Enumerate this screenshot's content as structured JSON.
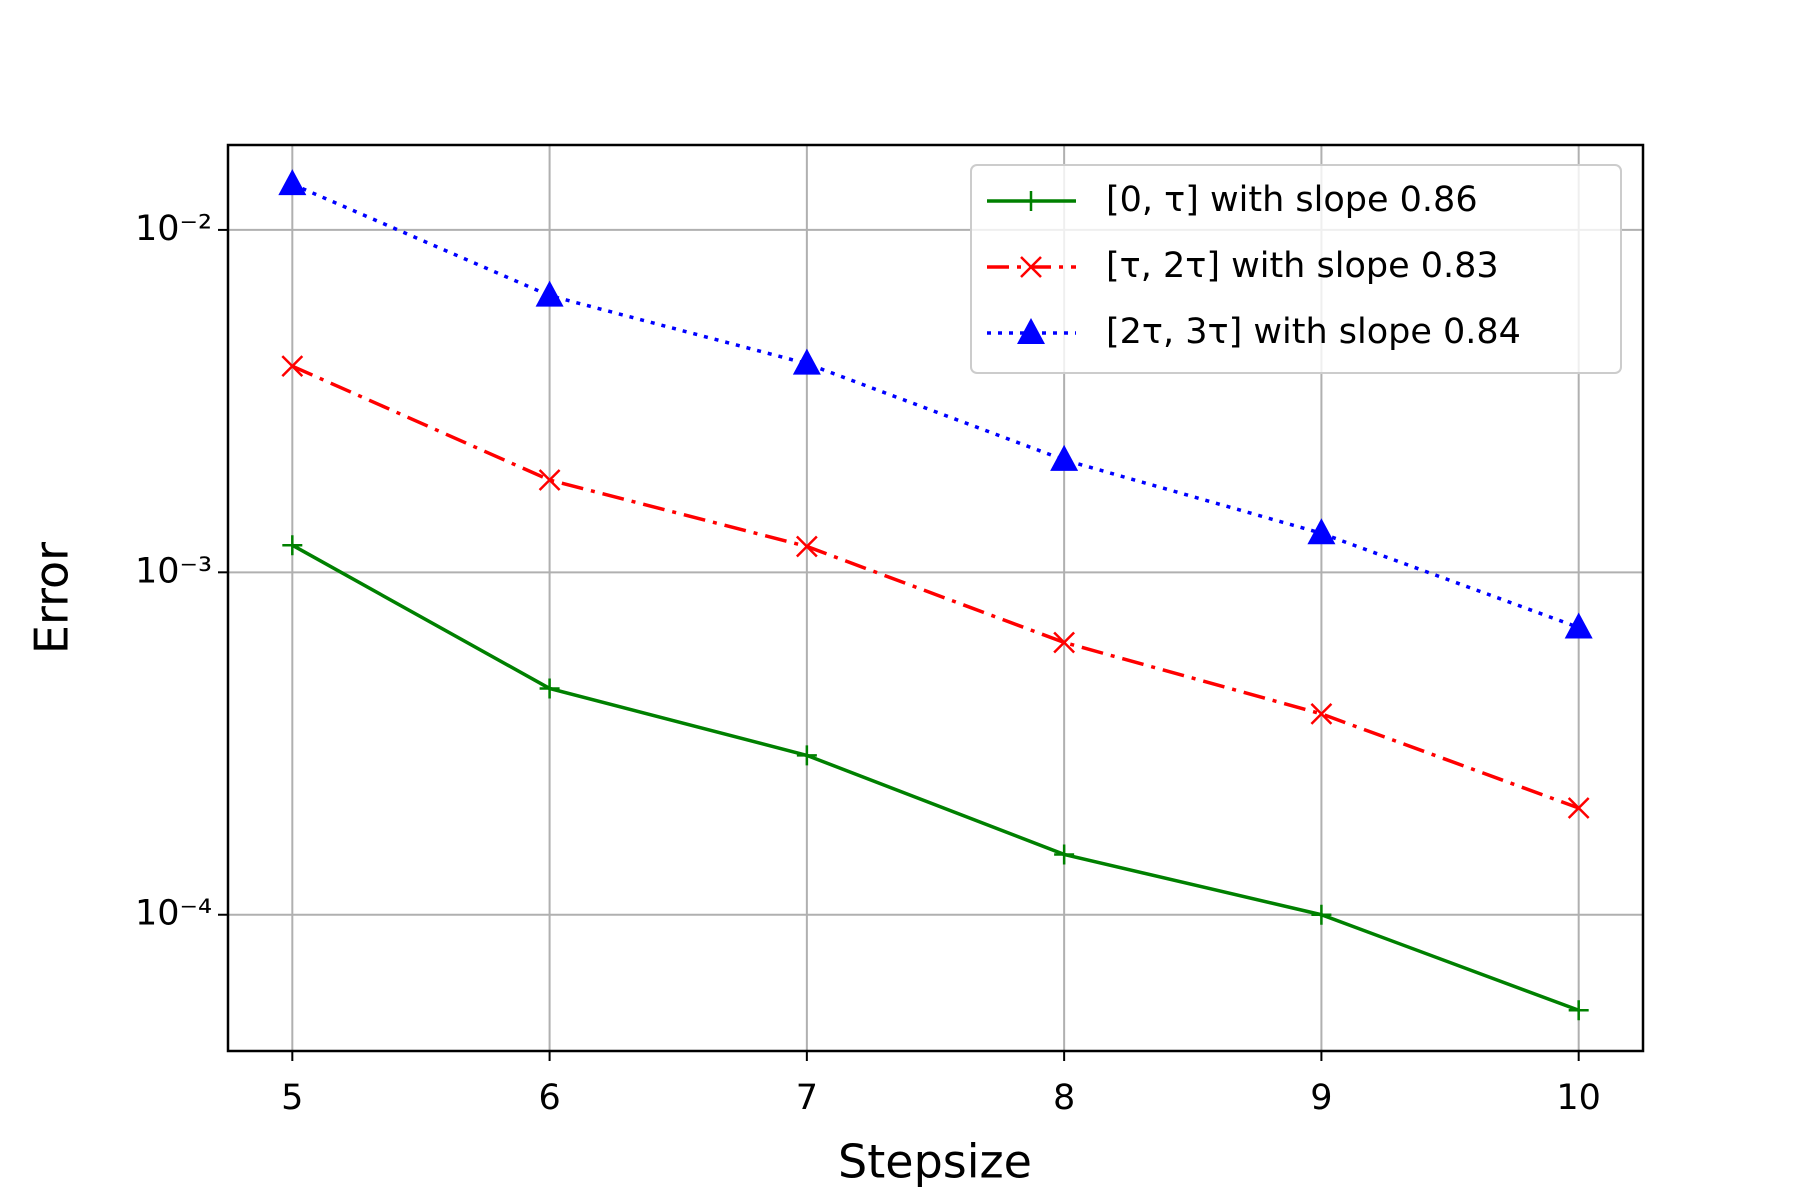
{
  "chart_data": {
    "type": "line",
    "x": [
      5,
      6,
      7,
      8,
      9,
      10
    ],
    "xlabel": "Stepsize",
    "ylabel": "Error",
    "xlim": [
      4.75,
      10.25
    ],
    "xticks": [
      5,
      6,
      7,
      8,
      9,
      10
    ],
    "ylim": [
      4e-05,
      0.0177
    ],
    "yscale": "log",
    "yticks": [
      {
        "value": 0.0001,
        "label": "10⁻⁴"
      },
      {
        "value": 0.001,
        "label": "10⁻³"
      },
      {
        "value": 0.01,
        "label": "10⁻²"
      }
    ],
    "grid": true,
    "legend": "upper right",
    "series": [
      {
        "name": "[0, τ] with slope 0.86",
        "color": "#008000",
        "linestyle": "solid",
        "marker": "plus",
        "values": [
          0.0012,
          0.000458,
          0.000292,
          0.00015,
          0.0001,
          5.26e-05
        ]
      },
      {
        "name": "[τ, 2τ] with slope 0.83",
        "color": "#ff0000",
        "linestyle": "dashdot",
        "marker": "x",
        "values": [
          0.004,
          0.00186,
          0.00119,
          0.000624,
          0.000386,
          0.000205
        ]
      },
      {
        "name": "[2τ, 3τ] with slope 0.84",
        "color": "#0000ff",
        "linestyle": "dotted",
        "marker": "triangle",
        "values": [
          0.0136,
          0.00643,
          0.00407,
          0.00213,
          0.0013,
          0.00069
        ]
      }
    ]
  }
}
